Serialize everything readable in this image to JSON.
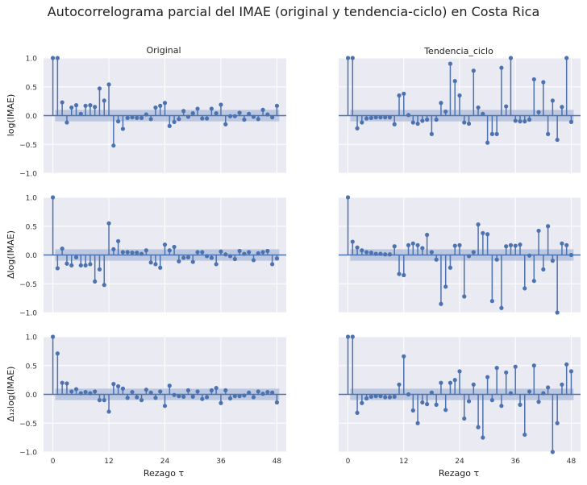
{
  "figure": {
    "title": "Autocorrelograma parcial del IMAE (original y tendencia-ciclo) en Costa Rica",
    "column_titles": [
      "Original",
      "Tendencia_ciclo"
    ],
    "row_ylabels": [
      "log(IMAE)",
      "Δlog(IMAE)",
      "Δ₁₂log(IMAE)"
    ],
    "xlabel": "Rezago τ",
    "x_ticks": [
      0,
      12,
      24,
      36,
      48
    ],
    "y_ticks": [
      -1.0,
      -0.5,
      0.0,
      0.5,
      1.0
    ],
    "y_tick_labels": [
      "−1.0",
      "−0.5",
      "0.0",
      "0.5",
      "1.0"
    ],
    "colors": {
      "plot_bg": "#EAEAF2",
      "grid": "#FFFFFF",
      "stem": "#4C72B0",
      "band": "#A8B9DA"
    }
  },
  "chart_data": [
    {
      "type": "stem",
      "title": "Original",
      "ylabel": "log(IMAE)",
      "xlim": [
        -2,
        50
      ],
      "ylim": [
        -1,
        1
      ],
      "conf": 0.1,
      "x": [
        0,
        1,
        2,
        3,
        4,
        5,
        6,
        7,
        8,
        9,
        10,
        11,
        12,
        13,
        14,
        15,
        16,
        17,
        18,
        19,
        20,
        21,
        22,
        23,
        24,
        25,
        26,
        27,
        28,
        29,
        30,
        31,
        32,
        33,
        34,
        35,
        36,
        37,
        38,
        39,
        40,
        41,
        42,
        43,
        44,
        45,
        46,
        47,
        48
      ],
      "values": [
        1.0,
        1.0,
        0.23,
        -0.12,
        0.14,
        0.18,
        0.03,
        0.17,
        0.18,
        0.15,
        0.47,
        0.26,
        0.54,
        -0.52,
        -0.1,
        -0.23,
        -0.04,
        -0.03,
        -0.04,
        -0.04,
        0.02,
        -0.06,
        0.14,
        0.17,
        0.22,
        -0.18,
        -0.11,
        -0.06,
        0.08,
        -0.02,
        0.04,
        0.12,
        -0.05,
        -0.05,
        0.12,
        0.04,
        0.19,
        -0.15,
        -0.01,
        -0.01,
        0.05,
        -0.07,
        0.03,
        -0.02,
        -0.06,
        0.1,
        0.02,
        -0.03,
        0.17
      ]
    },
    {
      "type": "stem",
      "title": "Tendencia_ciclo",
      "ylabel": "log(IMAE)",
      "xlim": [
        -2,
        50
      ],
      "ylim": [
        -1,
        1
      ],
      "conf": 0.1,
      "x": [
        0,
        1,
        2,
        3,
        4,
        5,
        6,
        7,
        8,
        9,
        10,
        11,
        12,
        13,
        14,
        15,
        16,
        17,
        18,
        19,
        20,
        21,
        22,
        23,
        24,
        25,
        26,
        27,
        28,
        29,
        30,
        31,
        32,
        33,
        34,
        35,
        36,
        37,
        38,
        39,
        40,
        41,
        42,
        43,
        44,
        45,
        46,
        47,
        48
      ],
      "values": [
        1.0,
        1.0,
        -0.22,
        -0.12,
        -0.05,
        -0.04,
        -0.03,
        -0.03,
        -0.03,
        -0.03,
        -0.15,
        0.35,
        0.38,
        0.01,
        -0.12,
        -0.14,
        -0.09,
        -0.07,
        -0.32,
        -0.07,
        0.22,
        0.07,
        0.9,
        0.6,
        0.35,
        -0.12,
        -0.14,
        0.78,
        0.14,
        0.03,
        -0.47,
        -0.32,
        -0.32,
        0.83,
        0.16,
        1.0,
        -0.09,
        -0.1,
        -0.1,
        -0.07,
        0.63,
        0.06,
        0.58,
        -0.32,
        0.26,
        -0.42,
        0.15,
        1.0,
        -0.11
      ]
    },
    {
      "type": "stem",
      "title": "Original",
      "ylabel": "Δlog(IMAE)",
      "xlim": [
        -2,
        50
      ],
      "ylim": [
        -1,
        1
      ],
      "conf": 0.1,
      "x": [
        0,
        1,
        2,
        3,
        4,
        5,
        6,
        7,
        8,
        9,
        10,
        11,
        12,
        13,
        14,
        15,
        16,
        17,
        18,
        19,
        20,
        21,
        22,
        23,
        24,
        25,
        26,
        27,
        28,
        29,
        30,
        31,
        32,
        33,
        34,
        35,
        36,
        37,
        38,
        39,
        40,
        41,
        42,
        43,
        44,
        45,
        46,
        47,
        48
      ],
      "values": [
        1.0,
        -0.23,
        0.11,
        -0.15,
        -0.18,
        -0.04,
        -0.18,
        -0.18,
        -0.16,
        -0.46,
        -0.25,
        -0.52,
        0.55,
        0.1,
        0.24,
        0.05,
        0.05,
        0.04,
        0.04,
        0.02,
        0.08,
        -0.13,
        -0.16,
        -0.22,
        0.18,
        0.08,
        0.14,
        -0.11,
        -0.05,
        -0.04,
        -0.12,
        0.05,
        0.05,
        -0.02,
        -0.05,
        -0.16,
        0.06,
        0.01,
        -0.02,
        -0.07,
        0.07,
        0.02,
        0.05,
        -0.09,
        0.03,
        0.05,
        0.07,
        -0.16,
        -0.06
      ]
    },
    {
      "type": "stem",
      "title": "Tendencia_ciclo",
      "ylabel": "Δlog(IMAE)",
      "xlim": [
        -2,
        50
      ],
      "ylim": [
        -1,
        1
      ],
      "conf": 0.1,
      "x": [
        0,
        1,
        2,
        3,
        4,
        5,
        6,
        7,
        8,
        9,
        10,
        11,
        12,
        13,
        14,
        15,
        16,
        17,
        18,
        19,
        20,
        21,
        22,
        23,
        24,
        25,
        26,
        27,
        28,
        29,
        30,
        31,
        32,
        33,
        34,
        35,
        36,
        37,
        38,
        39,
        40,
        41,
        42,
        43,
        44,
        45,
        46,
        47,
        48
      ],
      "values": [
        1.0,
        0.23,
        0.13,
        0.08,
        0.05,
        0.04,
        0.02,
        0.02,
        0.01,
        0.01,
        0.15,
        -0.33,
        -0.35,
        0.17,
        0.2,
        0.17,
        0.12,
        0.35,
        0.05,
        -0.08,
        -0.85,
        -0.55,
        -0.22,
        0.16,
        0.17,
        -0.72,
        -0.02,
        0.05,
        0.53,
        0.38,
        0.36,
        -0.8,
        -0.08,
        -0.92,
        0.15,
        0.17,
        0.16,
        0.18,
        -0.58,
        -0.01,
        -0.45,
        0.42,
        -0.25,
        0.5,
        -0.1,
        -1.0,
        0.2,
        0.17,
        0.0
      ]
    },
    {
      "type": "stem",
      "title": "Original",
      "ylabel": "Δ₁₂log(IMAE)",
      "xlim": [
        -2,
        50
      ],
      "ylim": [
        -1,
        1
      ],
      "conf": 0.1,
      "x": [
        0,
        1,
        2,
        3,
        4,
        5,
        6,
        7,
        8,
        9,
        10,
        11,
        12,
        13,
        14,
        15,
        16,
        17,
        18,
        19,
        20,
        21,
        22,
        23,
        24,
        25,
        26,
        27,
        28,
        29,
        30,
        31,
        32,
        33,
        34,
        35,
        36,
        37,
        38,
        39,
        40,
        41,
        42,
        43,
        44,
        45,
        46,
        47,
        48
      ],
      "values": [
        1.0,
        0.71,
        0.2,
        0.19,
        0.05,
        0.09,
        0.02,
        0.04,
        0.02,
        0.05,
        -0.1,
        -0.1,
        -0.3,
        0.18,
        0.14,
        0.1,
        -0.06,
        0.04,
        -0.05,
        -0.1,
        0.08,
        0.03,
        -0.06,
        0.05,
        -0.2,
        0.15,
        -0.01,
        -0.03,
        -0.04,
        0.07,
        -0.04,
        0.05,
        -0.08,
        -0.05,
        0.07,
        0.11,
        -0.15,
        0.07,
        -0.07,
        -0.03,
        -0.03,
        -0.02,
        0.03,
        -0.05,
        0.05,
        0.01,
        0.04,
        0.03,
        -0.14
      ]
    },
    {
      "type": "stem",
      "title": "Tendencia_ciclo",
      "ylabel": "Δ₁₂log(IMAE)",
      "xlim": [
        -2,
        50
      ],
      "ylim": [
        -1,
        1
      ],
      "conf": 0.1,
      "x": [
        0,
        1,
        2,
        3,
        4,
        5,
        6,
        7,
        8,
        9,
        10,
        11,
        12,
        13,
        14,
        15,
        16,
        17,
        18,
        19,
        20,
        21,
        22,
        23,
        24,
        25,
        26,
        27,
        28,
        29,
        30,
        31,
        32,
        33,
        34,
        35,
        36,
        37,
        38,
        39,
        40,
        41,
        42,
        43,
        44,
        45,
        46,
        47,
        48
      ],
      "values": [
        1.0,
        1.0,
        -0.32,
        -0.15,
        -0.07,
        -0.04,
        -0.03,
        -0.03,
        -0.05,
        -0.05,
        -0.04,
        0.17,
        0.66,
        0.0,
        -0.28,
        -0.5,
        -0.14,
        -0.17,
        0.03,
        -0.18,
        0.2,
        -0.27,
        0.2,
        0.25,
        0.4,
        -0.42,
        -0.12,
        0.17,
        -0.57,
        -0.75,
        0.3,
        -0.1,
        0.46,
        -0.2,
        0.38,
        0.02,
        0.48,
        -0.18,
        -0.7,
        0.05,
        0.5,
        -0.13,
        0.02,
        0.12,
        -1.0,
        -0.5,
        0.17,
        0.52,
        0.4
      ]
    }
  ]
}
